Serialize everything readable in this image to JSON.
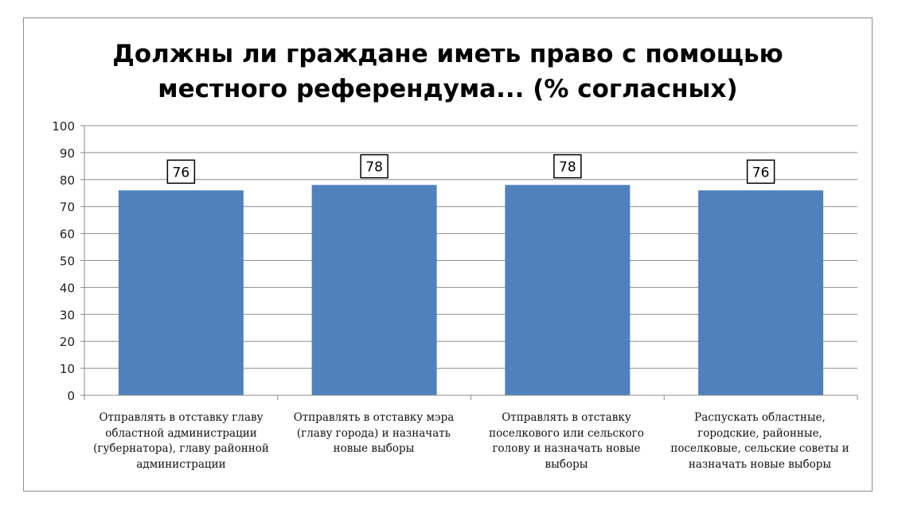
{
  "chart_data": {
    "type": "bar",
    "title_lines": [
      "Должны ли граждане иметь право с помощью",
      "местного референдума... (% согласных)"
    ],
    "categories": [
      "Отправлять в отставку главу областной администрации (губернатора), главу районной администрации",
      "Отправлять в отставку мэра (главу города) и назначать новые выборы",
      "Отправлять в отставку поселкового или сельского голову и назначать новые выборы",
      "Распускать областные, городские, районные, поселковые, сельские советы и назначать новые выборы"
    ],
    "values": [
      76,
      78,
      78,
      76
    ],
    "data_labels": [
      "76",
      "78",
      "78",
      "76"
    ],
    "ylim": [
      0,
      100
    ],
    "yticks": [
      "0",
      "10",
      "20",
      "30",
      "40",
      "50",
      "60",
      "70",
      "80",
      "90",
      "100"
    ],
    "grid": true,
    "legend": "none",
    "bar_color": "#4f81bd"
  }
}
